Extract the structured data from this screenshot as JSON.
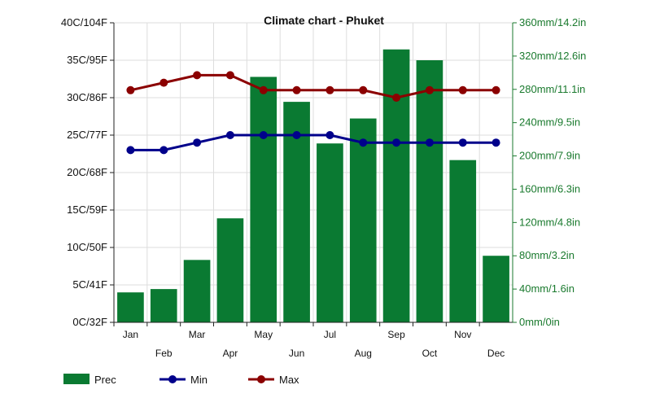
{
  "chart_data": {
    "type": "bar",
    "title": "Climate chart - Phuket",
    "categories": [
      "Jan",
      "Feb",
      "Mar",
      "Apr",
      "May",
      "Jun",
      "Jul",
      "Aug",
      "Sep",
      "Oct",
      "Nov",
      "Dec"
    ],
    "series": [
      {
        "name": "Prec",
        "type": "bar",
        "axis": "right",
        "unit": "mm",
        "color": "#0a7a32",
        "values": [
          36,
          40,
          75,
          125,
          295,
          265,
          215,
          245,
          328,
          315,
          195,
          80
        ]
      },
      {
        "name": "Min",
        "type": "line",
        "axis": "left",
        "unit": "C",
        "color": "#00008b",
        "values": [
          23,
          23,
          24,
          25,
          25,
          25,
          25,
          24,
          24,
          24,
          24,
          24
        ]
      },
      {
        "name": "Max",
        "type": "line",
        "axis": "left",
        "unit": "C",
        "color": "#8b0000",
        "values": [
          31,
          32,
          33,
          33,
          31,
          31,
          31,
          31,
          30,
          31,
          31,
          31
        ]
      }
    ],
    "y_left": {
      "ylim": [
        0,
        40
      ],
      "ticks": [
        0,
        5,
        10,
        15,
        20,
        25,
        30,
        35,
        40
      ],
      "tick_labels": [
        "0C/32F",
        "5C/41F",
        "10C/50F",
        "15C/59F",
        "20C/68F",
        "25C/77F",
        "30C/86F",
        "35C/95F",
        "40C/104F"
      ]
    },
    "y_right": {
      "ylim": [
        0,
        360
      ],
      "ticks": [
        0,
        40,
        80,
        120,
        160,
        200,
        240,
        280,
        320,
        360
      ],
      "tick_labels": [
        "0mm/0in",
        "40mm/1.6in",
        "80mm/3.2in",
        "120mm/4.8in",
        "160mm/6.3in",
        "200mm/7.9in",
        "240mm/9.5in",
        "280mm/11.1in",
        "320mm/12.6in",
        "360mm/14.2in"
      ]
    },
    "grid": true,
    "legend_position": "bottom-left"
  }
}
